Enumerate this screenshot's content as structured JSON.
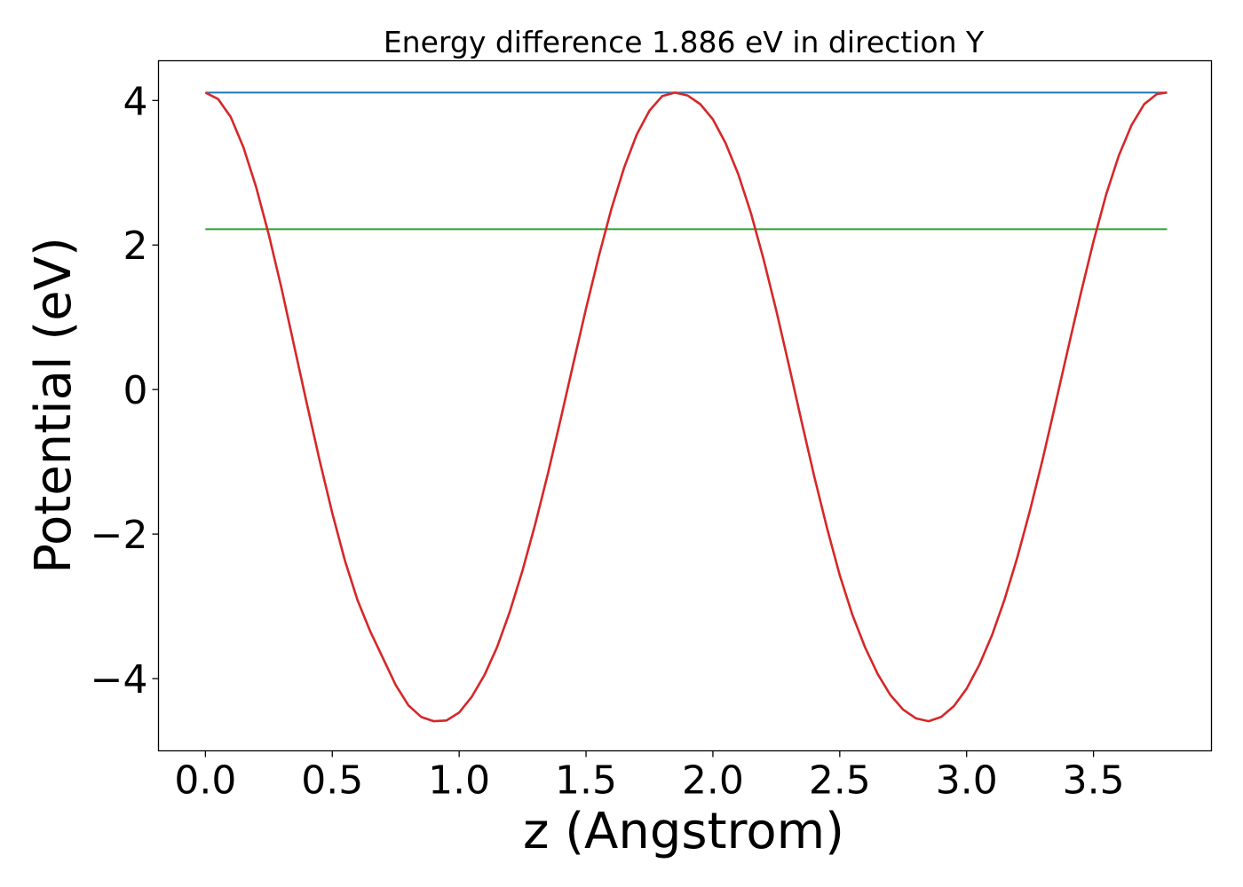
{
  "chart_data": {
    "type": "line",
    "title": "Energy difference 1.886 eV in direction Y",
    "xlabel": "z (Angstrom)",
    "ylabel": "Potential (eV)",
    "xlim": [
      -0.185,
      3.965
    ],
    "ylim": [
      -5.0,
      4.55
    ],
    "xticks": [
      0.0,
      0.5,
      1.0,
      1.5,
      2.0,
      2.5,
      3.0,
      3.5
    ],
    "xtick_labels": [
      "0.0",
      "0.5",
      "1.0",
      "1.5",
      "2.0",
      "2.5",
      "3.0",
      "3.5"
    ],
    "yticks": [
      4,
      2,
      0,
      -2,
      -4
    ],
    "ytick_labels": [
      "4",
      "2",
      "0",
      "−2",
      "−4"
    ],
    "grid": false,
    "legend": "none",
    "series": [
      {
        "color": "#1f77b4",
        "x": [
          0.0,
          3.79
        ],
        "y": [
          4.11,
          4.11
        ]
      },
      {
        "color": "#2ca02c",
        "x": [
          0.0,
          3.79
        ],
        "y": [
          2.22,
          2.22
        ]
      },
      {
        "color": "#d62728",
        "x": [
          0.0,
          0.05,
          0.1,
          0.15,
          0.2,
          0.25,
          0.3,
          0.35,
          0.4,
          0.45,
          0.5,
          0.55,
          0.6,
          0.65,
          0.7,
          0.75,
          0.8,
          0.85,
          0.9,
          0.95,
          1.0,
          1.05,
          1.1,
          1.15,
          1.2,
          1.25,
          1.3,
          1.35,
          1.4,
          1.45,
          1.5,
          1.55,
          1.6,
          1.65,
          1.7,
          1.75,
          1.8,
          1.85,
          1.9,
          1.95,
          2.0,
          2.05,
          2.1,
          2.15,
          2.2,
          2.25,
          2.3,
          2.35,
          2.4,
          2.45,
          2.5,
          2.55,
          2.6,
          2.65,
          2.7,
          2.75,
          2.8,
          2.85,
          2.9,
          2.95,
          3.0,
          3.05,
          3.1,
          3.15,
          3.2,
          3.25,
          3.3,
          3.35,
          3.4,
          3.45,
          3.5,
          3.55,
          3.6,
          3.65,
          3.7,
          3.75,
          3.79
        ],
        "y": [
          4.11,
          4.02,
          3.77,
          3.35,
          2.8,
          2.14,
          1.4,
          0.6,
          -0.2,
          -0.98,
          -1.71,
          -2.37,
          -2.92,
          -3.35,
          -3.72,
          -4.09,
          -4.37,
          -4.53,
          -4.59,
          -4.58,
          -4.47,
          -4.25,
          -3.95,
          -3.56,
          -3.07,
          -2.5,
          -1.86,
          -1.16,
          -0.41,
          0.36,
          1.12,
          1.84,
          2.5,
          3.07,
          3.53,
          3.86,
          4.06,
          4.11,
          4.07,
          3.95,
          3.74,
          3.41,
          2.98,
          2.44,
          1.8,
          1.09,
          0.33,
          -0.45,
          -1.21,
          -1.92,
          -2.57,
          -3.12,
          -3.57,
          -3.94,
          -4.23,
          -4.43,
          -4.55,
          -4.59,
          -4.53,
          -4.38,
          -4.14,
          -3.81,
          -3.4,
          -2.9,
          -2.32,
          -1.67,
          -0.96,
          -0.2,
          0.57,
          1.33,
          2.05,
          2.7,
          3.24,
          3.66,
          3.95,
          4.09,
          4.11
        ]
      }
    ]
  }
}
